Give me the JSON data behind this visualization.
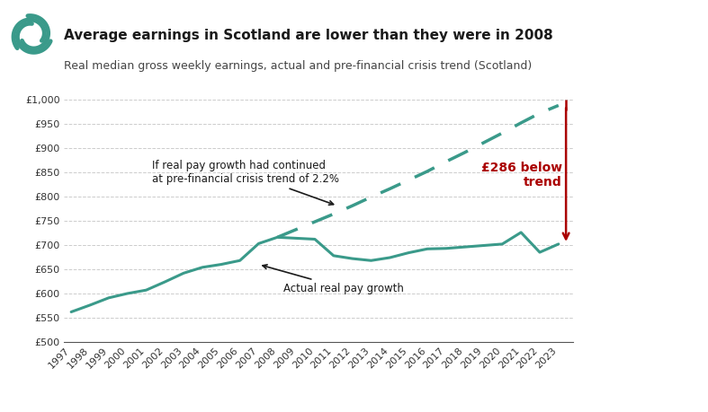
{
  "title": "Average earnings in Scotland are lower than they were in 2008",
  "subtitle": "Real median gross weekly earnings, actual and pre-financial crisis trend (Scotland)",
  "actual_years": [
    1997,
    1998,
    1999,
    2000,
    2001,
    2002,
    2003,
    2004,
    2005,
    2006,
    2007,
    2008,
    2009,
    2010,
    2011,
    2012,
    2013,
    2014,
    2015,
    2016,
    2017,
    2018,
    2019,
    2020,
    2021,
    2022,
    2023
  ],
  "actual_values": [
    562,
    576,
    591,
    600,
    607,
    624,
    642,
    654,
    660,
    668,
    703,
    716,
    714,
    712,
    678,
    672,
    668,
    674,
    684,
    692,
    693,
    696,
    699,
    702,
    726,
    685,
    702
  ],
  "trend_years": [
    2008,
    2009,
    2010,
    2011,
    2012,
    2013,
    2014,
    2015,
    2016,
    2017,
    2018,
    2019,
    2020,
    2021,
    2022,
    2023
  ],
  "trend_values": [
    716,
    732,
    748,
    764,
    781,
    799,
    816,
    834,
    852,
    872,
    891,
    911,
    931,
    952,
    972,
    988
  ],
  "actual_color": "#3a9a8a",
  "trend_color": "#3a9a8a",
  "background_color": "#ffffff",
  "grid_color": "#cccccc",
  "gap_arrow_color": "#aa0000",
  "gap_label": "£286 below\ntrend",
  "gap_label_color": "#aa0000",
  "annotation1_text": "If real pay growth had continued\nat pre-financial crisis trend of 2.2%",
  "annotation2_text": "Actual real pay growth",
  "ylim_min": 500,
  "ylim_max": 1010,
  "ytick_values": [
    500,
    550,
    600,
    650,
    700,
    750,
    800,
    850,
    900,
    950,
    1000
  ],
  "ytick_labels": [
    "£500",
    "£550",
    "£600",
    "£650",
    "£700",
    "£750",
    "£800",
    "£850",
    "£900",
    "£950",
    "£1,000"
  ],
  "title_fontsize": 11,
  "subtitle_fontsize": 9,
  "tick_fontsize": 8,
  "annotation_fontsize": 8.5
}
